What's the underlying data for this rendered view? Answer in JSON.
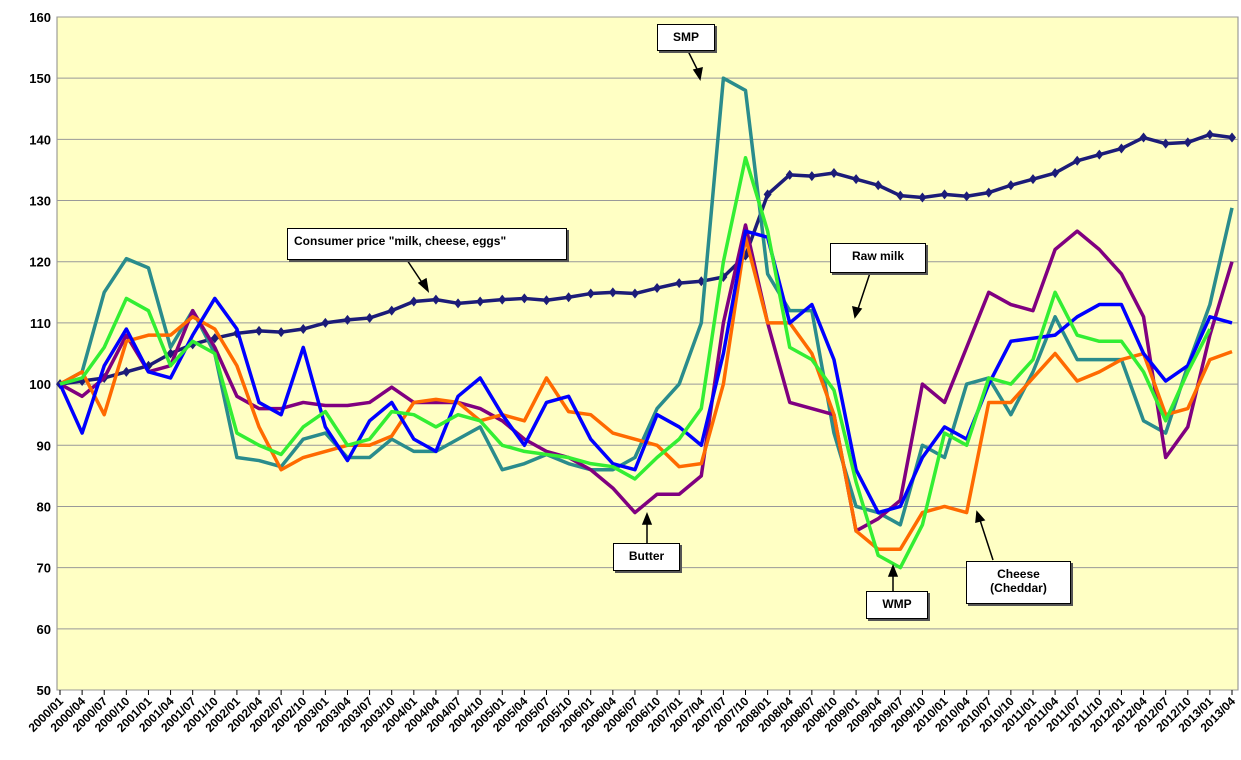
{
  "chart_data": {
    "type": "line",
    "categories": [
      "2000/01",
      "2000/04",
      "2000/07",
      "2000/10",
      "2001/01",
      "2001/04",
      "2001/07",
      "2001/10",
      "2002/01",
      "2002/04",
      "2002/07",
      "2002/10",
      "2003/01",
      "2003/04",
      "2003/07",
      "2003/10",
      "2004/01",
      "2004/04",
      "2004/07",
      "2004/10",
      "2005/01",
      "2005/04",
      "2005/07",
      "2005/10",
      "2006/01",
      "2006/04",
      "2006/07",
      "2006/10",
      "2007/01",
      "2007/04",
      "2007/07",
      "2007/10",
      "2008/01",
      "2008/04",
      "2008/07",
      "2008/10",
      "2009/01",
      "2009/04",
      "2009/07",
      "2009/10",
      "2010/01",
      "2010/04",
      "2010/07",
      "2010/10",
      "2011/01",
      "2011/04",
      "2011/07",
      "2011/10",
      "2012/01",
      "2012/04",
      "2012/07",
      "2012/10",
      "2013/01",
      "2013/04"
    ],
    "series": [
      {
        "name": "Consumer price \"milk, cheese, eggs\"",
        "color": "#1c1c78",
        "marker": "diamond",
        "values": [
          100,
          100.5,
          101,
          102,
          103,
          105,
          106.5,
          107.5,
          108.3,
          108.7,
          108.5,
          109,
          110,
          110.5,
          110.8,
          112,
          113.5,
          113.8,
          113.2,
          113.5,
          113.8,
          114,
          113.7,
          114.2,
          114.8,
          115,
          114.8,
          115.7,
          116.5,
          116.8,
          117.5,
          121,
          131,
          134.2,
          134,
          134.5,
          133.5,
          132.5,
          130.8,
          130.5,
          131,
          130.7,
          131.3,
          132.5,
          133.5,
          134.5,
          136.5,
          137.5,
          138.5,
          140.3,
          139.3,
          139.5,
          140.8,
          140.3
        ]
      },
      {
        "name": "SMP",
        "color": "#2a8c8c",
        "values": [
          100,
          102,
          115,
          120.5,
          119,
          106,
          112,
          105,
          88,
          87.5,
          86.5,
          91,
          92,
          88,
          88,
          91,
          89,
          89,
          91,
          93,
          86,
          87,
          88.5,
          87,
          86,
          86,
          88,
          96,
          100,
          110,
          150,
          148,
          118,
          112,
          112,
          92,
          80,
          79,
          77,
          90,
          88,
          100,
          101,
          95,
          102,
          111,
          104,
          104,
          104,
          94,
          92,
          103,
          113,
          128.8
        ]
      },
      {
        "name": "Butter",
        "color": "#800080",
        "values": [
          100,
          98,
          101,
          108,
          102,
          103,
          112,
          106,
          98,
          96,
          96,
          97,
          96.5,
          96.5,
          97,
          99.5,
          97,
          97,
          97,
          96,
          94,
          91,
          89,
          88,
          86,
          83,
          79,
          82,
          82,
          85,
          110,
          126,
          110,
          97,
          96,
          95,
          76,
          78,
          81,
          100,
          97,
          106,
          115,
          113,
          112,
          122,
          125,
          122,
          118,
          111,
          88,
          93,
          108,
          120
        ]
      },
      {
        "name": "Cheese (Cheddar)",
        "color": "#ff6a00",
        "values": [
          100,
          102,
          95,
          107,
          108,
          108,
          111,
          109,
          103,
          93,
          86,
          88,
          89,
          90,
          90,
          91.5,
          97,
          97.5,
          97,
          94,
          95,
          94,
          101,
          95.5,
          95,
          92,
          91,
          90,
          86.5,
          87,
          100,
          124,
          110,
          110,
          105,
          95,
          76,
          73,
          73,
          79,
          80,
          79,
          97,
          97,
          101,
          105,
          100.5,
          102,
          104,
          105,
          95,
          96,
          104,
          105.3
        ]
      },
      {
        "name": "Raw milk",
        "color": "#0000ff",
        "values": [
          100,
          92,
          103,
          109,
          102,
          101,
          108,
          114,
          109,
          97,
          95,
          106,
          93,
          87.5,
          94,
          97,
          91,
          89,
          98,
          101,
          95,
          90,
          97,
          98,
          91,
          87,
          86,
          95,
          93,
          90,
          105,
          125,
          124,
          110,
          113,
          104,
          86,
          79,
          80,
          88,
          93,
          91,
          100,
          107,
          107.5,
          108,
          111,
          113,
          113,
          105,
          100.5,
          103,
          111,
          110
        ]
      },
      {
        "name": "WMP",
        "color": "#33ee33",
        "values": [
          100,
          101,
          106,
          114,
          112,
          103,
          107,
          105,
          92,
          90,
          88.5,
          93,
          95.5,
          90,
          91,
          95.5,
          95,
          93,
          95,
          94,
          90,
          89,
          88.5,
          88,
          87,
          86.5,
          84.5,
          88,
          91,
          96,
          120,
          137,
          125,
          106,
          104,
          99,
          84,
          72,
          70,
          77,
          92,
          90,
          101,
          100,
          104,
          115,
          108,
          107,
          107,
          102,
          94,
          102,
          109,
          null
        ]
      }
    ],
    "ylim": [
      50,
      160
    ],
    "yticks": [
      50,
      60,
      70,
      80,
      90,
      100,
      110,
      120,
      130,
      140,
      150,
      160
    ],
    "grid": true
  }
}
